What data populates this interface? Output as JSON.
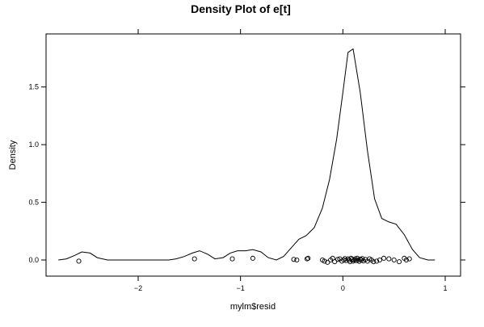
{
  "chart_data": {
    "type": "line",
    "title": "Density Plot of e[t]",
    "xlabel": "mylm$resid",
    "ylabel": "Density",
    "xlim": [
      -2.9,
      1.15
    ],
    "ylim": [
      -0.14,
      1.96
    ],
    "x_ticks": [
      -2,
      -1,
      0,
      1
    ],
    "x_tick_labels": [
      "−2",
      "−1",
      "0",
      "1"
    ],
    "y_ticks": [
      0.0,
      0.5,
      1.0,
      1.5
    ],
    "y_tick_labels": [
      "0.0",
      "0.5",
      "1.0",
      "1.5"
    ],
    "grid": false,
    "series": [
      {
        "kind": "density",
        "x": [
          -2.78,
          -2.7,
          -2.62,
          -2.55,
          -2.47,
          -2.4,
          -2.3,
          -2.2,
          -2.1,
          -2.0,
          -1.9,
          -1.8,
          -1.7,
          -1.63,
          -1.55,
          -1.47,
          -1.4,
          -1.32,
          -1.25,
          -1.17,
          -1.1,
          -1.03,
          -0.95,
          -0.88,
          -0.8,
          -0.73,
          -0.65,
          -0.58,
          -0.5,
          -0.43,
          -0.36,
          -0.28,
          -0.2,
          -0.13,
          -0.06,
          0.0,
          0.05,
          0.1,
          0.17,
          0.24,
          0.31,
          0.38,
          0.45,
          0.52,
          0.6,
          0.68,
          0.75,
          0.83,
          0.9
        ],
        "y": [
          0.0,
          0.01,
          0.04,
          0.07,
          0.06,
          0.02,
          0.0,
          0.0,
          0.0,
          0.0,
          0.0,
          0.0,
          0.0,
          0.01,
          0.03,
          0.06,
          0.08,
          0.05,
          0.01,
          0.02,
          0.06,
          0.08,
          0.08,
          0.09,
          0.07,
          0.02,
          0.0,
          0.03,
          0.11,
          0.18,
          0.21,
          0.28,
          0.45,
          0.7,
          1.05,
          1.45,
          1.8,
          1.83,
          1.45,
          0.95,
          0.53,
          0.36,
          0.33,
          0.31,
          0.22,
          0.09,
          0.02,
          0.0,
          0.0
        ]
      },
      {
        "kind": "rug-points",
        "x": [
          -2.58,
          -1.45,
          -1.08,
          -0.88,
          -0.48,
          -0.45,
          -0.35,
          -0.34,
          -0.2,
          -0.18,
          -0.15,
          -0.12,
          -0.1,
          -0.08,
          -0.05,
          -0.03,
          -0.01,
          0.01,
          0.02,
          0.03,
          0.05,
          0.06,
          0.07,
          0.08,
          0.09,
          0.1,
          0.11,
          0.12,
          0.13,
          0.14,
          0.15,
          0.16,
          0.17,
          0.18,
          0.19,
          0.2,
          0.22,
          0.24,
          0.26,
          0.28,
          0.3,
          0.33,
          0.36,
          0.4,
          0.45,
          0.5,
          0.55,
          0.6,
          0.62,
          0.65
        ],
        "y": [
          -0.01,
          0.01,
          0.01,
          0.015,
          0.005,
          0.0,
          0.01,
          0.015,
          0.0,
          -0.01,
          -0.02,
          0.0,
          0.015,
          -0.015,
          0.005,
          0.01,
          -0.01,
          0.0,
          0.012,
          -0.005,
          0.01,
          0.0,
          -0.015,
          0.015,
          0.005,
          -0.01,
          0.0,
          0.01,
          -0.005,
          0.015,
          0.0,
          -0.012,
          0.008,
          0.0,
          0.012,
          -0.008,
          0.005,
          -0.01,
          0.01,
          0.0,
          -0.015,
          -0.01,
          0.0,
          0.015,
          0.01,
          0.0,
          -0.015,
          0.015,
          0.0,
          0.01
        ]
      }
    ]
  }
}
